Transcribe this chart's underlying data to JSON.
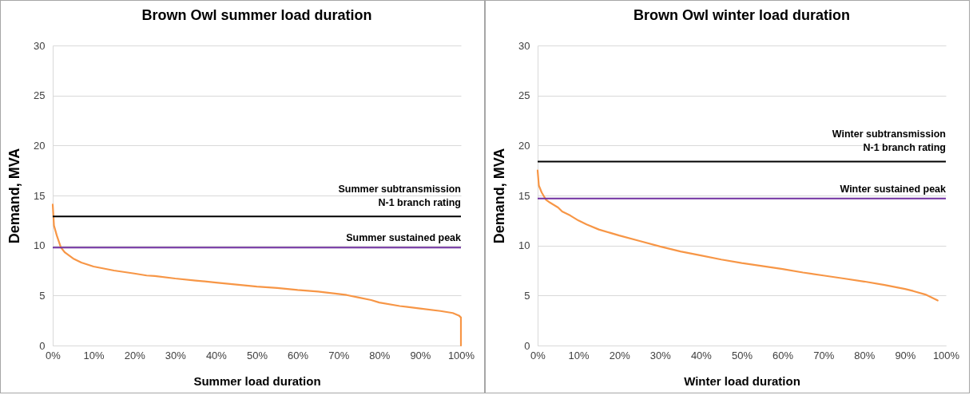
{
  "chart_data": [
    {
      "type": "line",
      "title": "Brown Owl summer load duration",
      "xlabel": "Summer load duration",
      "ylabel": "Demand, MVA",
      "x": [
        0,
        0.3,
        1,
        2,
        3,
        4,
        5,
        7,
        10,
        15,
        20,
        23,
        25,
        30,
        35,
        40,
        45,
        50,
        55,
        60,
        65,
        70,
        72,
        75,
        78,
        80,
        85,
        90,
        95,
        98,
        99.5,
        100,
        100
      ],
      "series": [
        {
          "color": "#f79646",
          "values": [
            14.1,
            12,
            11,
            9.8,
            9.3,
            9,
            8.7,
            8.3,
            7.9,
            7.5,
            7.2,
            7,
            6.95,
            6.7,
            6.5,
            6.3,
            6.1,
            5.9,
            5.75,
            5.55,
            5.4,
            5.15,
            5.05,
            4.8,
            4.55,
            4.3,
            3.95,
            3.7,
            3.45,
            3.25,
            3,
            2.8,
            0
          ]
        }
      ],
      "xlim": [
        0,
        100
      ],
      "xticks": [
        {
          "value": 0,
          "label": "0%"
        },
        {
          "value": 10,
          "label": "10%"
        },
        {
          "value": 20,
          "label": "20%"
        },
        {
          "value": 30,
          "label": "30%"
        },
        {
          "value": 40,
          "label": "40%"
        },
        {
          "value": 50,
          "label": "50%"
        },
        {
          "value": 60,
          "label": "60%"
        },
        {
          "value": 70,
          "label": "70%"
        },
        {
          "value": 80,
          "label": "80%"
        },
        {
          "value": 90,
          "label": "90%"
        },
        {
          "value": 100,
          "label": "100%"
        }
      ],
      "ylim": [
        0,
        30
      ],
      "yticks": [
        0,
        5,
        10,
        15,
        20,
        25,
        30
      ],
      "grid": "y",
      "ref_lines": [
        {
          "axis": "y",
          "value": 12.9,
          "label": "Summer subtransmission\nN-1 branch rating",
          "color": "#000000"
        },
        {
          "axis": "y",
          "value": 9.8,
          "label": "Summer sustained peak",
          "color": "#7030a0"
        }
      ]
    },
    {
      "type": "line",
      "title": "Brown Owl winter load duration",
      "xlabel": "Winter load duration",
      "ylabel": "Demand, MVA",
      "x": [
        0,
        0.3,
        1,
        2,
        3,
        5,
        6,
        8,
        10,
        12,
        15,
        20,
        25,
        30,
        35,
        40,
        45,
        50,
        55,
        60,
        65,
        70,
        75,
        80,
        85,
        90,
        92,
        95,
        98
      ],
      "series": [
        {
          "color": "#f79646",
          "values": [
            17.5,
            16,
            15.3,
            14.6,
            14.3,
            13.8,
            13.4,
            13,
            12.5,
            12.1,
            11.6,
            11,
            10.45,
            9.9,
            9.4,
            9,
            8.6,
            8.25,
            7.95,
            7.65,
            7.3,
            7,
            6.7,
            6.4,
            6.05,
            5.65,
            5.45,
            5.1,
            4.5
          ]
        }
      ],
      "xlim": [
        0,
        100
      ],
      "xticks": [
        {
          "value": 0,
          "label": "0%"
        },
        {
          "value": 10,
          "label": "10%"
        },
        {
          "value": 20,
          "label": "20%"
        },
        {
          "value": 30,
          "label": "30%"
        },
        {
          "value": 40,
          "label": "40%"
        },
        {
          "value": 50,
          "label": "50%"
        },
        {
          "value": 60,
          "label": "60%"
        },
        {
          "value": 70,
          "label": "70%"
        },
        {
          "value": 80,
          "label": "80%"
        },
        {
          "value": 90,
          "label": "90%"
        },
        {
          "value": 100,
          "label": "100%"
        }
      ],
      "ylim": [
        0,
        30
      ],
      "yticks": [
        0,
        5,
        10,
        15,
        20,
        25,
        30
      ],
      "grid": "y",
      "ref_lines": [
        {
          "axis": "y",
          "value": 18.4,
          "label": "Winter subtransmission\nN-1 branch rating",
          "color": "#000000"
        },
        {
          "axis": "y",
          "value": 14.7,
          "label": "Winter sustained peak",
          "color": "#7030a0"
        }
      ]
    }
  ]
}
